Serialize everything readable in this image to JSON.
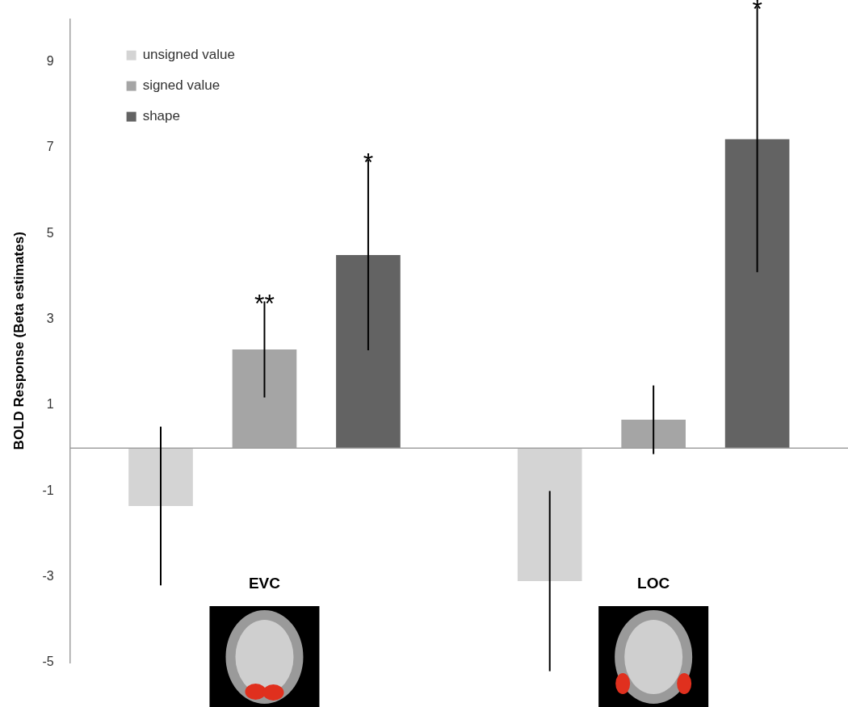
{
  "chart_data": {
    "type": "bar",
    "y_label": "BOLD Response (Beta estimates)",
    "categories": [
      "EVC",
      "LOC"
    ],
    "series": [
      {
        "name": "unsigned value",
        "color": "#d4d4d4",
        "values": [
          -1.35,
          -3.1
        ],
        "errors": [
          1.85,
          2.1
        ]
      },
      {
        "name": "signed value",
        "color": "#a5a5a5",
        "values": [
          2.3,
          0.66
        ],
        "errors": [
          1.12,
          0.8
        ]
      },
      {
        "name": "shape",
        "color": "#636363",
        "values": [
          4.5,
          7.2
        ],
        "errors": [
          2.22,
          3.1
        ]
      }
    ],
    "annotations": [
      {
        "text": "**",
        "category": "EVC",
        "series": "signed value"
      },
      {
        "text": "*",
        "category": "EVC",
        "series": "shape"
      },
      {
        "text": "*",
        "category": "LOC",
        "series": "shape"
      }
    ],
    "ylim": [
      -5,
      10
    ],
    "yticks": [
      -5,
      -3,
      -1,
      1,
      3,
      5,
      7,
      9
    ],
    "grid": false,
    "legend": "upper left"
  }
}
